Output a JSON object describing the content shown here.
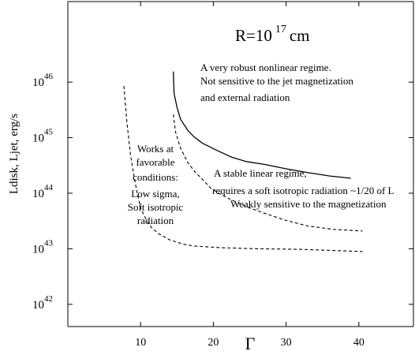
{
  "chart_data": {
    "type": "line",
    "xlabel": "Γ",
    "ylabel": "Ldisk, Ljet, erg/s",
    "xlim": [
      0,
      47.5
    ],
    "ylim": [
      41.6,
      47.45
    ],
    "y_scale": "log",
    "grid": false,
    "x_ticks": [
      {
        "value": 10,
        "label": "10"
      },
      {
        "value": 20,
        "label": "20"
      },
      {
        "value": 30,
        "label": "30"
      },
      {
        "value": 40,
        "label": "40"
      }
    ],
    "y_ticks": [
      {
        "value": 42,
        "base": "10",
        "exp": "42"
      },
      {
        "value": 43,
        "base": "10",
        "exp": "43"
      },
      {
        "value": 44,
        "base": "10",
        "exp": "44"
      },
      {
        "value": 45,
        "base": "10",
        "exp": "45"
      },
      {
        "value": 46,
        "base": "10",
        "exp": "46"
      }
    ],
    "title_parts": {
      "prefix": "R=10",
      "exp": "17",
      "suffix": "cm"
    },
    "series": [
      {
        "style": "solid",
        "x": [
          14.5,
          14.6,
          15.0,
          15.5,
          16.5,
          17.3,
          18.5,
          20.5,
          22.5,
          24.5,
          27.0,
          30.0,
          33.0,
          36.0,
          38.9
        ],
        "y": [
          46.19,
          45.8,
          45.55,
          45.33,
          45.13,
          45.02,
          44.9,
          44.77,
          44.65,
          44.57,
          44.52,
          44.44,
          44.37,
          44.31,
          44.27
        ]
      },
      {
        "style": "dashed",
        "x": [
          7.7,
          8.1,
          8.6,
          9.1,
          9.6,
          10.1,
          10.8,
          11.5,
          12.5,
          14.0,
          16.0,
          17.3,
          21.0,
          26.0,
          32.0,
          40.5
        ],
        "y": [
          45.93,
          45.3,
          44.7,
          44.3,
          43.96,
          43.7,
          43.52,
          43.38,
          43.27,
          43.16,
          43.08,
          43.05,
          43.02,
          43.0,
          42.99,
          42.95
        ]
      },
      {
        "style": "dashed",
        "x": [
          14.5,
          14.8,
          15.5,
          16.5,
          17.5,
          18.5,
          19.7,
          21.0,
          22.5,
          24.5,
          27.0,
          30.0,
          33.0,
          36.5,
          40.5
        ],
        "y": [
          45.42,
          45.1,
          44.81,
          44.55,
          44.38,
          44.25,
          44.08,
          43.98,
          43.88,
          43.76,
          43.64,
          43.51,
          43.41,
          43.35,
          43.32
        ]
      }
    ],
    "annotations": [
      {
        "lines": [
          "A very robust nonlinear regime.",
          "Not sensitive to the jet magnetization",
          "and external radiation"
        ]
      },
      {
        "lines": [
          "A stable linear regime,",
          "requires a soft isotropic radiation ~1/20 of L",
          "Weakly  sensitive to the magnetization"
        ]
      },
      {
        "lines": [
          "Works at",
          "favorable",
          "conditions:",
          "Low sigma,",
          "Soft isotropic",
          "radiation"
        ]
      }
    ]
  }
}
